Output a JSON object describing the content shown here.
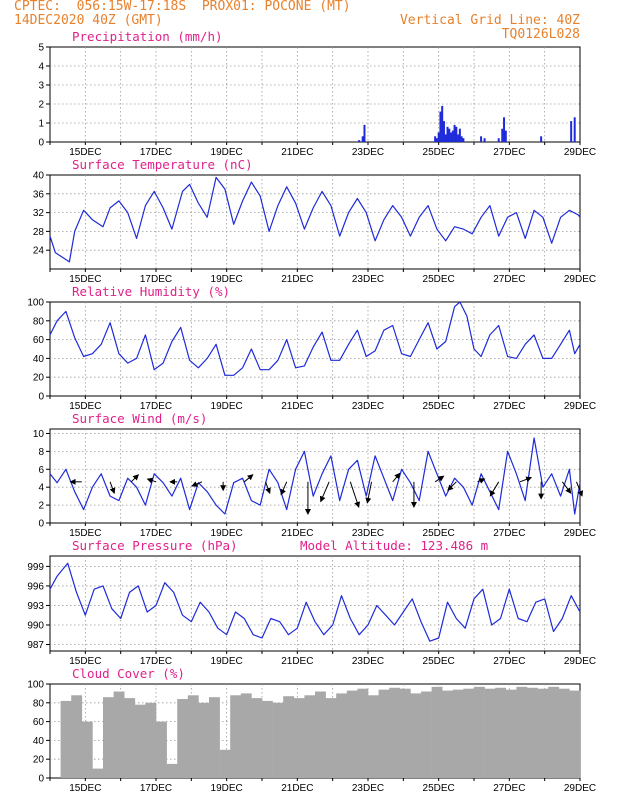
{
  "header": {
    "line1_left": "CPTEC:  056:15W-17:18S  PROX01: POCONE (MT)",
    "line2_left": "14DEC2020 40Z (GMT)",
    "line2_right": "Vertical Grid Line: 40Z",
    "line3_right": "TQ0126L028"
  },
  "colors": {
    "header": "#e8812c",
    "title": "#e0218a",
    "series": "#1f2bd9",
    "cloud": "#a8a8a8",
    "arrow": "#000000"
  },
  "chart_data": [
    {
      "id": "precip",
      "type": "bar",
      "title": "Precipitation (mm/h)",
      "x_range": [
        14,
        29
      ],
      "ylim": [
        0,
        5
      ],
      "yticks": [
        0,
        1,
        2,
        3,
        4,
        5
      ],
      "xticks": [
        {
          "x": 15,
          "label": "15DEC"
        },
        {
          "x": 17,
          "label": "17DEC"
        },
        {
          "x": 19,
          "label": "19DEC"
        },
        {
          "x": 21,
          "label": "21DEC"
        },
        {
          "x": 23,
          "label": "23DEC"
        },
        {
          "x": 25,
          "label": "25DEC"
        },
        {
          "x": 27,
          "label": "27DEC"
        },
        {
          "x": 29,
          "label": "29DEC"
        }
      ],
      "x": [
        22.75,
        22.85,
        22.9,
        24.9,
        24.95,
        25.0,
        25.05,
        25.1,
        25.15,
        25.2,
        25.25,
        25.3,
        25.35,
        25.4,
        25.45,
        25.5,
        25.55,
        25.6,
        25.65,
        25.7,
        26.2,
        26.3,
        26.7,
        26.8,
        26.85,
        26.9,
        27.9,
        28.75,
        28.85
      ],
      "values": [
        0.1,
        0.3,
        0.9,
        0.3,
        0.2,
        0.5,
        1.6,
        1.9,
        1.1,
        0.4,
        0.8,
        0.7,
        0.5,
        0.6,
        0.9,
        0.8,
        0.4,
        0.7,
        0.3,
        0.2,
        0.3,
        0.2,
        0.2,
        0.7,
        1.3,
        0.6,
        0.3,
        1.1,
        1.3
      ]
    },
    {
      "id": "temp",
      "type": "line",
      "title": "Surface Temperature (nC)",
      "x_range": [
        14,
        29
      ],
      "ylim": [
        20,
        40
      ],
      "yticks": [
        24,
        28,
        32,
        36,
        40
      ],
      "xticks": [
        {
          "x": 15,
          "label": "15DEC"
        },
        {
          "x": 17,
          "label": "17DEC"
        },
        {
          "x": 19,
          "label": "19DEC"
        },
        {
          "x": 21,
          "label": "21DEC"
        },
        {
          "x": 23,
          "label": "23DEC"
        },
        {
          "x": 25,
          "label": "25DEC"
        },
        {
          "x": 27,
          "label": "27DEC"
        },
        {
          "x": 29,
          "label": "29DEC"
        }
      ],
      "x": [
        14.0,
        14.15,
        14.35,
        14.55,
        14.7,
        14.95,
        15.2,
        15.5,
        15.7,
        15.95,
        16.2,
        16.45,
        16.7,
        16.95,
        17.2,
        17.45,
        17.75,
        17.95,
        18.2,
        18.45,
        18.7,
        18.95,
        19.2,
        19.45,
        19.7,
        19.95,
        20.2,
        20.45,
        20.7,
        20.95,
        21.2,
        21.45,
        21.7,
        21.95,
        22.2,
        22.45,
        22.7,
        22.95,
        23.2,
        23.45,
        23.7,
        23.95,
        24.2,
        24.45,
        24.7,
        24.95,
        25.2,
        25.45,
        25.7,
        25.95,
        26.2,
        26.45,
        26.7,
        26.95,
        27.2,
        27.45,
        27.7,
        27.95,
        28.2,
        28.45,
        28.7,
        28.95,
        29.0
      ],
      "values": [
        27.0,
        23.5,
        22.5,
        21.5,
        28.0,
        32.5,
        30.5,
        29.0,
        33.0,
        34.5,
        32.0,
        26.5,
        33.5,
        36.5,
        33.0,
        28.5,
        36.5,
        38.0,
        34.0,
        31.0,
        39.5,
        37.0,
        29.5,
        34.5,
        38.5,
        35.5,
        28.0,
        33.5,
        37.5,
        34.0,
        28.5,
        33.0,
        36.5,
        33.5,
        27.0,
        32.0,
        35.0,
        32.0,
        26.0,
        30.5,
        33.5,
        31.0,
        27.0,
        31.0,
        33.5,
        28.5,
        26.0,
        29.0,
        28.5,
        27.5,
        31.0,
        33.5,
        27.0,
        31.0,
        32.0,
        26.5,
        32.5,
        31.0,
        25.5,
        31.0,
        32.5,
        31.5,
        31.0
      ]
    },
    {
      "id": "rh",
      "type": "line",
      "title": "Relative Humidity (%)",
      "x_range": [
        14,
        29
      ],
      "ylim": [
        0,
        100
      ],
      "yticks": [
        0,
        20,
        40,
        60,
        80,
        100
      ],
      "xticks": [
        {
          "x": 15,
          "label": "15DEC"
        },
        {
          "x": 17,
          "label": "17DEC"
        },
        {
          "x": 19,
          "label": "19DEC"
        },
        {
          "x": 21,
          "label": "21DEC"
        },
        {
          "x": 23,
          "label": "23DEC"
        },
        {
          "x": 25,
          "label": "25DEC"
        },
        {
          "x": 27,
          "label": "27DEC"
        },
        {
          "x": 29,
          "label": "29DEC"
        }
      ],
      "x": [
        14.0,
        14.2,
        14.45,
        14.7,
        14.95,
        15.2,
        15.45,
        15.7,
        15.95,
        16.2,
        16.45,
        16.7,
        16.95,
        17.2,
        17.45,
        17.7,
        17.95,
        18.2,
        18.45,
        18.7,
        18.95,
        19.2,
        19.45,
        19.7,
        19.95,
        20.2,
        20.45,
        20.7,
        20.95,
        21.2,
        21.45,
        21.7,
        21.95,
        22.2,
        22.45,
        22.7,
        22.95,
        23.2,
        23.45,
        23.7,
        23.95,
        24.2,
        24.45,
        24.7,
        24.95,
        25.2,
        25.45,
        25.6,
        25.8,
        26.0,
        26.2,
        26.45,
        26.7,
        26.95,
        27.2,
        27.45,
        27.7,
        27.95,
        28.2,
        28.45,
        28.7,
        28.85,
        29.0
      ],
      "values": [
        65,
        80,
        90,
        62,
        42,
        45,
        55,
        78,
        45,
        35,
        40,
        65,
        28,
        35,
        58,
        73,
        38,
        30,
        40,
        55,
        22,
        22,
        30,
        50,
        28,
        28,
        38,
        60,
        30,
        32,
        52,
        68,
        38,
        38,
        55,
        70,
        42,
        48,
        70,
        75,
        45,
        42,
        60,
        78,
        50,
        58,
        95,
        100,
        85,
        50,
        42,
        65,
        75,
        42,
        40,
        55,
        65,
        40,
        40,
        55,
        70,
        45,
        55
      ]
    },
    {
      "id": "wind",
      "type": "line",
      "title": "Surface Wind (m/s)",
      "x_range": [
        14,
        29
      ],
      "ylim": [
        0,
        10.5
      ],
      "yticks": [
        0,
        2,
        4,
        6,
        8,
        10
      ],
      "xticks": [
        {
          "x": 15,
          "label": "15DEC"
        },
        {
          "x": 17,
          "label": "17DEC"
        },
        {
          "x": 19,
          "label": "19DEC"
        },
        {
          "x": 21,
          "label": "21DEC"
        },
        {
          "x": 23,
          "label": "23DEC"
        },
        {
          "x": 25,
          "label": "25DEC"
        },
        {
          "x": 27,
          "label": "27DEC"
        },
        {
          "x": 29,
          "label": "29DEC"
        }
      ],
      "x": [
        14.0,
        14.2,
        14.45,
        14.7,
        14.95,
        15.2,
        15.45,
        15.7,
        15.95,
        16.2,
        16.45,
        16.7,
        16.95,
        17.2,
        17.45,
        17.7,
        17.95,
        18.2,
        18.45,
        18.7,
        18.95,
        19.2,
        19.45,
        19.7,
        19.95,
        20.2,
        20.45,
        20.7,
        20.95,
        21.2,
        21.45,
        21.7,
        21.95,
        22.2,
        22.45,
        22.7,
        22.95,
        23.2,
        23.45,
        23.7,
        23.95,
        24.2,
        24.45,
        24.7,
        24.95,
        25.2,
        25.45,
        25.7,
        25.95,
        26.2,
        26.45,
        26.7,
        26.95,
        27.2,
        27.45,
        27.7,
        27.95,
        28.2,
        28.45,
        28.7,
        28.85,
        29.0
      ],
      "values": [
        5.5,
        4.5,
        6.0,
        3.5,
        1.5,
        4.0,
        5.5,
        3.0,
        2.5,
        5.0,
        4.0,
        2.0,
        5.5,
        4.5,
        3.0,
        5.0,
        1.5,
        4.5,
        3.5,
        2.0,
        1.0,
        4.5,
        5.0,
        2.5,
        2.0,
        6.0,
        4.5,
        1.5,
        6.0,
        8.0,
        3.0,
        5.5,
        7.5,
        2.5,
        6.0,
        7.0,
        3.0,
        7.5,
        5.0,
        2.5,
        6.0,
        4.5,
        2.5,
        8.0,
        5.5,
        3.0,
        5.0,
        4.0,
        2.0,
        5.5,
        3.5,
        1.5,
        8.0,
        5.5,
        2.5,
        9.5,
        4.0,
        5.5,
        3.0,
        6.0,
        1.0,
        4.5
      ],
      "vectors": [
        {
          "x": 14.9,
          "u": -0.8,
          "v": 0.0
        },
        {
          "x": 15.7,
          "u": 0.3,
          "v": -0.8
        },
        {
          "x": 16.3,
          "u": 0.5,
          "v": 0.5
        },
        {
          "x": 17.0,
          "u": -0.6,
          "v": 0.2
        },
        {
          "x": 17.6,
          "u": -0.5,
          "v": 0.0
        },
        {
          "x": 18.3,
          "u": -0.7,
          "v": -0.3
        },
        {
          "x": 18.9,
          "u": 0.0,
          "v": -0.6
        },
        {
          "x": 19.5,
          "u": 0.6,
          "v": 0.5
        },
        {
          "x": 20.1,
          "u": 0.3,
          "v": -0.8
        },
        {
          "x": 20.7,
          "u": -0.4,
          "v": -0.9
        },
        {
          "x": 21.3,
          "u": 0.0,
          "v": -2.3
        },
        {
          "x": 21.9,
          "u": -0.6,
          "v": -1.4
        },
        {
          "x": 22.5,
          "u": 0.6,
          "v": -1.8
        },
        {
          "x": 23.1,
          "u": -0.3,
          "v": -1.5
        },
        {
          "x": 23.7,
          "u": 0.5,
          "v": 0.6
        },
        {
          "x": 24.3,
          "u": 0.0,
          "v": -1.8
        },
        {
          "x": 24.9,
          "u": 0.6,
          "v": 0.4
        },
        {
          "x": 25.5,
          "u": -0.6,
          "v": -0.6
        },
        {
          "x": 26.1,
          "u": 0.5,
          "v": 0.2
        },
        {
          "x": 26.7,
          "u": -0.6,
          "v": -1.0
        },
        {
          "x": 27.3,
          "u": 0.8,
          "v": 0.3
        },
        {
          "x": 27.9,
          "u": 0.0,
          "v": -1.2
        },
        {
          "x": 28.5,
          "u": 0.6,
          "v": -0.8
        },
        {
          "x": 28.9,
          "u": 0.4,
          "v": -1.0
        }
      ]
    },
    {
      "id": "pressure",
      "type": "line",
      "title": "Surface Pressure (hPa)",
      "annotation": "Model Altitude: 123.486 m",
      "x_range": [
        14,
        29
      ],
      "ylim": [
        986,
        1000.6
      ],
      "yticks": [
        987,
        990,
        993,
        996,
        999
      ],
      "xticks": [
        {
          "x": 15,
          "label": "15DEC"
        },
        {
          "x": 17,
          "label": "17DEC"
        },
        {
          "x": 19,
          "label": "19DEC"
        },
        {
          "x": 21,
          "label": "21DEC"
        },
        {
          "x": 23,
          "label": "23DEC"
        },
        {
          "x": 25,
          "label": "25DEC"
        },
        {
          "x": 27,
          "label": "27DEC"
        },
        {
          "x": 29,
          "label": "29DEC"
        }
      ],
      "x": [
        14.0,
        14.2,
        14.5,
        14.75,
        15.0,
        15.25,
        15.5,
        15.75,
        16.0,
        16.25,
        16.5,
        16.75,
        17.0,
        17.25,
        17.5,
        17.75,
        18.0,
        18.25,
        18.5,
        18.75,
        19.0,
        19.25,
        19.5,
        19.75,
        20.0,
        20.25,
        20.5,
        20.75,
        21.0,
        21.25,
        21.5,
        21.75,
        22.0,
        22.25,
        22.5,
        22.75,
        23.0,
        23.25,
        23.5,
        23.75,
        24.0,
        24.25,
        24.5,
        24.75,
        25.0,
        25.25,
        25.5,
        25.75,
        26.0,
        26.25,
        26.5,
        26.75,
        27.0,
        27.25,
        27.5,
        27.75,
        28.0,
        28.25,
        28.5,
        28.75,
        29.0
      ],
      "values": [
        995.5,
        997.5,
        999.5,
        995.0,
        991.5,
        995.5,
        996.0,
        992.5,
        991.0,
        995.0,
        996.0,
        992.0,
        993.0,
        996.5,
        995.0,
        991.5,
        990.5,
        993.5,
        992.0,
        989.5,
        988.5,
        992.0,
        991.0,
        988.5,
        988.0,
        991.0,
        990.5,
        988.5,
        989.5,
        993.5,
        990.5,
        988.5,
        990.0,
        994.5,
        991.0,
        988.5,
        990.0,
        993.0,
        991.5,
        990.0,
        992.0,
        994.0,
        990.5,
        987.5,
        988.0,
        993.5,
        991.0,
        989.5,
        994.0,
        995.5,
        990.0,
        991.0,
        995.5,
        991.0,
        990.5,
        993.5,
        994.0,
        989.0,
        991.0,
        994.5,
        992.0
      ]
    },
    {
      "id": "cloud",
      "type": "bar",
      "title": "Cloud Cover (%)",
      "x_range": [
        14,
        29
      ],
      "ylim": [
        0,
        100
      ],
      "yticks": [
        0,
        20,
        40,
        60,
        80,
        100
      ],
      "xticks": [
        {
          "x": 15,
          "label": "15DEC"
        },
        {
          "x": 17,
          "label": "17DEC"
        },
        {
          "x": 19,
          "label": "19DEC"
        },
        {
          "x": 21,
          "label": "21DEC"
        },
        {
          "x": 23,
          "label": "23DEC"
        },
        {
          "x": 25,
          "label": "25DEC"
        },
        {
          "x": 27,
          "label": "27DEC"
        },
        {
          "x": 29,
          "label": "29DEC"
        }
      ],
      "x": [
        14.0,
        14.3,
        14.6,
        14.9,
        15.2,
        15.5,
        15.8,
        16.1,
        16.4,
        16.7,
        17.0,
        17.3,
        17.6,
        17.9,
        18.2,
        18.5,
        18.8,
        19.1,
        19.4,
        19.7,
        20.0,
        20.3,
        20.6,
        20.9,
        21.2,
        21.5,
        21.8,
        22.1,
        22.4,
        22.7,
        23.0,
        23.3,
        23.6,
        23.9,
        24.2,
        24.5,
        24.8,
        25.1,
        25.4,
        25.7,
        26.0,
        26.3,
        26.6,
        26.9,
        27.2,
        27.5,
        27.8,
        28.1,
        28.4,
        28.7
      ],
      "values": [
        0,
        82,
        88,
        60,
        10,
        86,
        92,
        85,
        78,
        80,
        60,
        15,
        84,
        88,
        80,
        86,
        30,
        88,
        90,
        85,
        82,
        80,
        87,
        85,
        88,
        92,
        85,
        90,
        93,
        95,
        88,
        94,
        96,
        95,
        90,
        92,
        97,
        93,
        94,
        95,
        97,
        95,
        96,
        94,
        97,
        96,
        95,
        97,
        95,
        93
      ]
    }
  ]
}
